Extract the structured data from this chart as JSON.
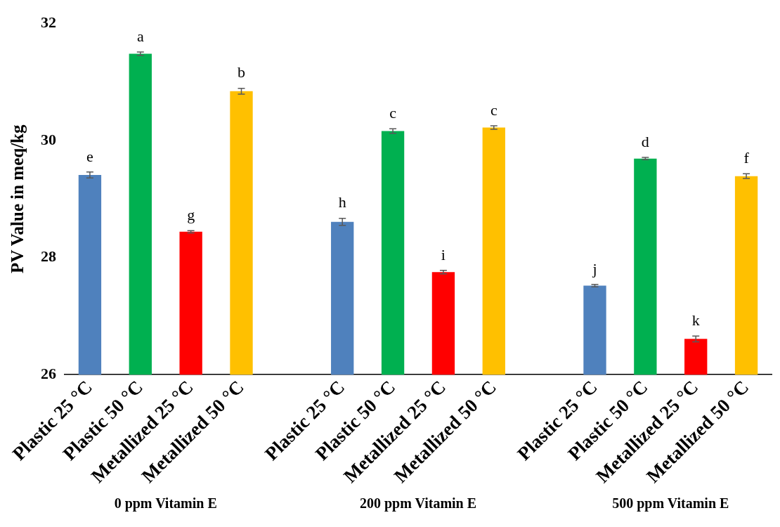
{
  "chart_data": {
    "type": "bar",
    "ylabel": "PV Value in meq/kg",
    "categories": [
      "Plastic 25 °C",
      "Plastic 50 °C",
      "Metallized 25 °C",
      "Metallized 50 °C",
      null,
      "Plastic 25 °C",
      "Plastic 50 °C",
      "Metallized 25 °C",
      "Metallized 50 °C",
      null,
      "Plastic 25 °C",
      "Plastic 50 °C",
      "Metallized 25 °C",
      "Metallized 50 °C"
    ],
    "values": [
      29.41,
      31.48,
      28.44,
      30.84,
      null,
      28.61,
      30.16,
      27.75,
      30.22,
      null,
      27.52,
      29.69,
      26.61,
      29.39
    ],
    "errors": [
      0.05,
      0.03,
      0.02,
      0.05,
      null,
      0.06,
      0.04,
      0.03,
      0.03,
      null,
      0.02,
      0.02,
      0.05,
      0.04
    ],
    "colors": [
      "#4f81bd",
      "#00b050",
      "#ff0000",
      "#ffc000",
      null,
      "#4f81bd",
      "#00b050",
      "#ff0000",
      "#ffc000",
      null,
      "#4f81bd",
      "#00b050",
      "#ff0000",
      "#ffc000"
    ],
    "value_labels": [
      "e",
      "a",
      "g",
      "b",
      null,
      "h",
      "c",
      "i",
      "c",
      null,
      "j",
      "d",
      "k",
      "f"
    ],
    "ylim": [
      26,
      32
    ],
    "yticks": [
      26,
      28,
      30,
      32
    ],
    "grid": false,
    "legend": false,
    "annotations": [
      "0 ppm Vitamin E",
      "200 ppm Vitamin E",
      "500 ppm Vitamin E"
    ]
  }
}
